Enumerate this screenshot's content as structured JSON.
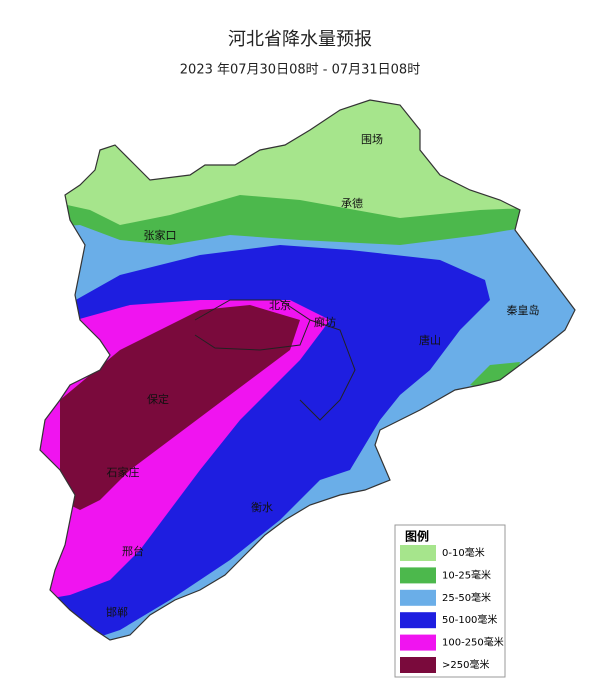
{
  "header": {
    "title": "河北省降水量预报",
    "subtitle": "2023 年07月30日08时 - 07月31日08时"
  },
  "map": {
    "cities": [
      {
        "name": "张家口"
      },
      {
        "name": "承德"
      },
      {
        "name": "北京"
      },
      {
        "name": "廊坊"
      },
      {
        "name": "唐山"
      },
      {
        "name": "秦皇岛"
      },
      {
        "name": "保定"
      },
      {
        "name": "石家庄"
      },
      {
        "name": "衡水"
      },
      {
        "name": "邢台"
      },
      {
        "name": "邯郸"
      },
      {
        "name": "围场"
      }
    ]
  },
  "legend": {
    "title": "图例",
    "items": [
      {
        "label": "0-10毫米",
        "color": "#a6e58c"
      },
      {
        "label": "10-25毫米",
        "color": "#4cb84c"
      },
      {
        "label": "25-50毫米",
        "color": "#6aaee8"
      },
      {
        "label": "50-100毫米",
        "color": "#1e1ee0"
      },
      {
        "label": "100-250毫米",
        "color": "#f014f0"
      },
      {
        "label": ">250毫米",
        "color": "#7a0a3c"
      }
    ]
  }
}
